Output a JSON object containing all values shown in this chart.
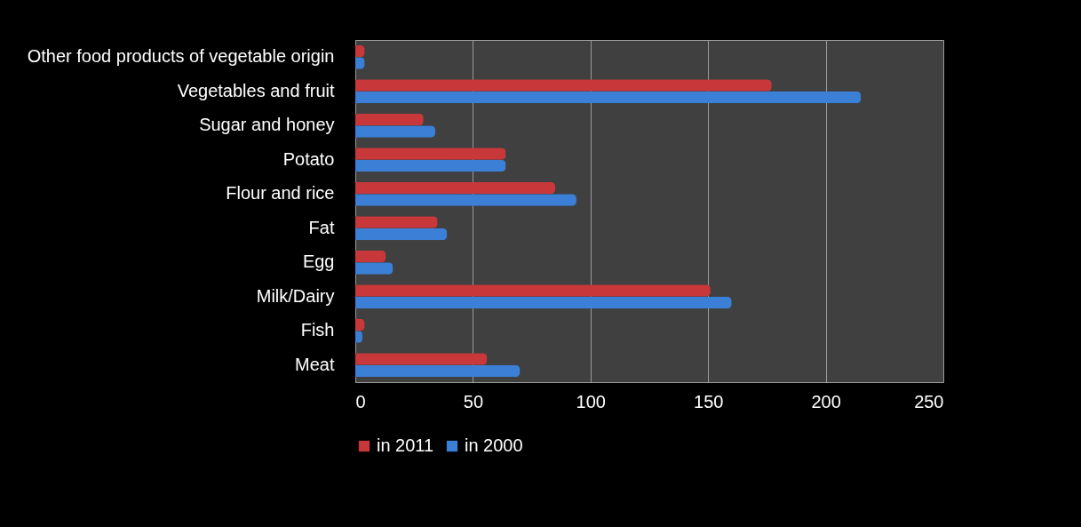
{
  "chart_data": {
    "type": "bar",
    "orientation": "horizontal",
    "categories": [
      "Other food products of vegetable origin",
      "Vegetables and fruit",
      "Sugar and honey",
      "Potato",
      "Flour and rice",
      "Fat ",
      "Egg",
      "Milk/Dairy",
      "Fish",
      "Meat"
    ],
    "series": [
      {
        "name": "in 2011",
        "color": "#c8383a",
        "values": [
          4,
          177,
          29,
          64,
          85,
          35,
          13,
          151,
          4,
          56
        ]
      },
      {
        "name": "in 2000",
        "color": "#3b7fd6",
        "values": [
          4,
          215,
          34,
          64,
          94,
          39,
          16,
          160,
          3,
          70
        ]
      }
    ],
    "xlim": [
      0,
      250
    ],
    "xticks": [
      0,
      50,
      100,
      150,
      200,
      250
    ],
    "grid": "x",
    "legend": "bottom"
  }
}
